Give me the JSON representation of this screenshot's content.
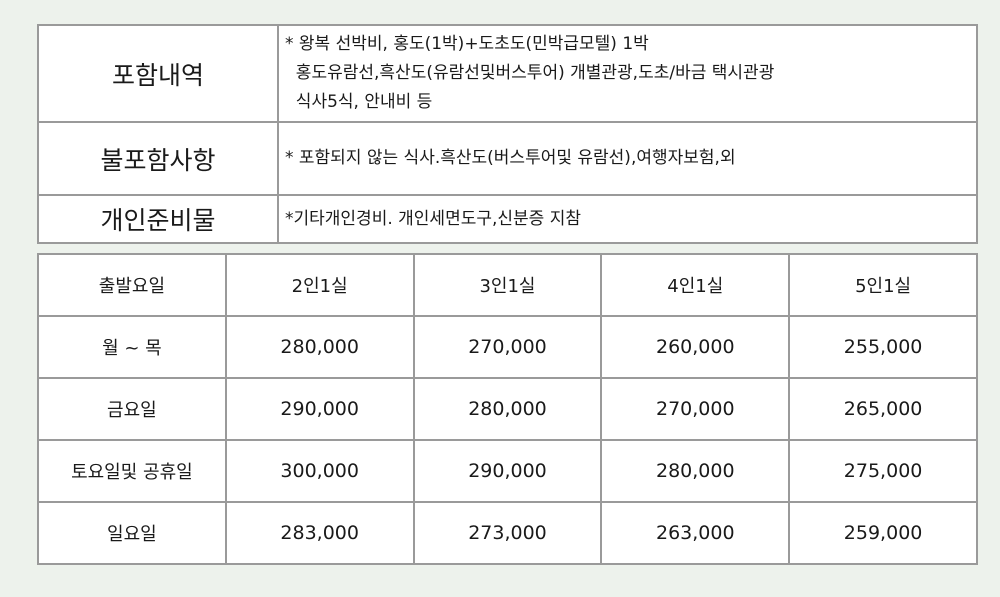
{
  "info": {
    "included": {
      "label": "포함내역",
      "lines": [
        "* 왕복 선박비, 홍도(1박)+도초도(민박급모텔) 1박",
        "  홍도유람선,흑산도(유람선및버스투어) 개별관광,도초/바금 택시관광",
        "  식사5식, 안내비 등"
      ]
    },
    "excluded": {
      "label": "불포함사항",
      "lines": [
        "* 포함되지 않는 식사.흑산도(버스투어및 유람선),여행자보험,외"
      ]
    },
    "prepare": {
      "label": "개인준비물",
      "lines": [
        "*기타개인경비. 개인세면도구,신분증 지참"
      ]
    }
  },
  "price_table": {
    "headers": [
      "출발요일",
      "2인1실",
      "3인1실",
      "4인1실",
      "5인1실"
    ],
    "rows": [
      {
        "day": "월 ~ 목",
        "prices": [
          "280,000",
          "270,000",
          "260,000",
          "255,000"
        ]
      },
      {
        "day": "금요일",
        "prices": [
          "290,000",
          "280,000",
          "270,000",
          "265,000"
        ]
      },
      {
        "day": "토요일및 공휴일",
        "prices": [
          "300,000",
          "290,000",
          "280,000",
          "275,000"
        ]
      },
      {
        "day": "일요일",
        "prices": [
          "283,000",
          "273,000",
          "263,000",
          "259,000"
        ]
      }
    ]
  }
}
